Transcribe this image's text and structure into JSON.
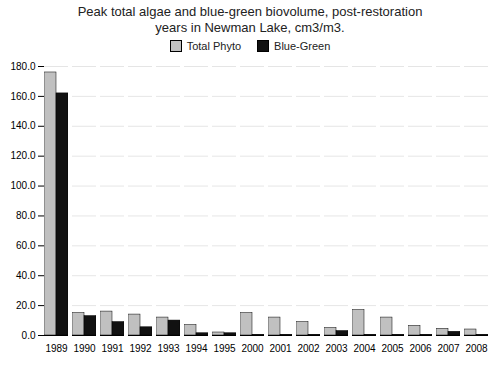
{
  "chart_data": {
    "type": "bar",
    "title": "Peak total algae and blue-green biovolume, post-restoration\nyears  in Newman Lake, cm3/m3.",
    "categories": [
      "1989",
      "1990",
      "1991",
      "1992",
      "1993",
      "1994",
      "1995",
      "2000",
      "2001",
      "2002",
      "2003",
      "2004",
      "2005",
      "2006",
      "2007",
      "2008"
    ],
    "series": [
      {
        "name": "Total Phyto",
        "color": "#c0c0c0",
        "values": [
          176,
          15,
          16,
          14,
          12,
          7,
          2,
          15,
          12,
          9,
          5,
          17,
          12,
          6.5,
          4.5,
          4
        ]
      },
      {
        "name": "Blue-Green",
        "color": "#111111",
        "values": [
          162,
          13,
          9,
          5.5,
          10,
          1.5,
          1.5,
          0.5,
          0.5,
          0.5,
          3,
          0.5,
          0.5,
          0.5,
          2.5,
          0.5
        ]
      }
    ],
    "ylim": [
      0,
      180
    ],
    "yticks": [
      {
        "value": 0,
        "label": "0.0"
      },
      {
        "value": 20,
        "label": "20.0"
      },
      {
        "value": 40,
        "label": "40.0"
      },
      {
        "value": 60,
        "label": "60.0"
      },
      {
        "value": 80,
        "label": "80.0"
      },
      {
        "value": 100,
        "label": "100.0"
      },
      {
        "value": 120,
        "label": "120.0"
      },
      {
        "value": 140,
        "label": "140.0"
      },
      {
        "value": 160,
        "label": "160.0"
      },
      {
        "value": 180,
        "label": "180.0"
      }
    ],
    "grid": true,
    "legend": "upper center"
  }
}
